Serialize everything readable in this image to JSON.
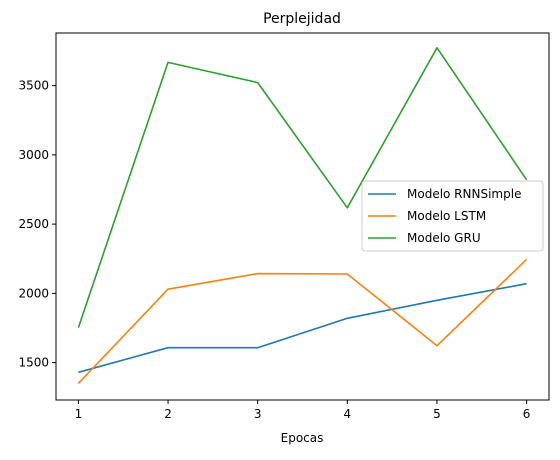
{
  "chart_data": {
    "type": "line",
    "title": "Perplejidad",
    "xlabel": "Epocas",
    "ylabel": "",
    "x": [
      1,
      2,
      3,
      4,
      5,
      6
    ],
    "xlim": [
      0.75,
      6.25
    ],
    "ylim": [
      1230,
      3880
    ],
    "xticks": [
      1,
      2,
      3,
      4,
      5,
      6
    ],
    "yticks": [
      1500,
      2000,
      2500,
      3000,
      3500
    ],
    "grid": false,
    "legend_position": "center-right",
    "series": [
      {
        "name": "Modelo RNNSimple",
        "color": "#1f77b4",
        "values": [
          1430,
          1608,
          1608,
          1820,
          1950,
          2070
        ]
      },
      {
        "name": "Modelo LSTM",
        "color": "#ff7f0e",
        "values": [
          1350,
          2030,
          2143,
          2140,
          1622,
          2245
        ]
      },
      {
        "name": "Modelo GRU",
        "color": "#2ca02c",
        "values": [
          1753,
          3668,
          3522,
          2618,
          3773,
          2820
        ]
      }
    ]
  }
}
